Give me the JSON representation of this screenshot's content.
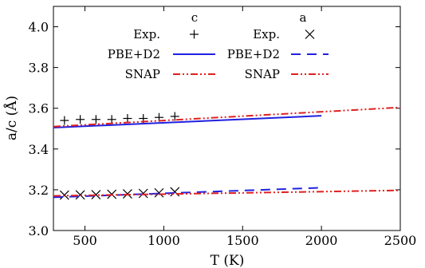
{
  "chart_data": {
    "type": "line",
    "xlabel": "T (K)",
    "ylabel": "a/c (Å)",
    "xlim": [
      300,
      2500
    ],
    "ylim": [
      3.0,
      4.1
    ],
    "xticks": [
      500,
      1000,
      1500,
      2000,
      2500
    ],
    "yticks": [
      3.0,
      3.2,
      3.4,
      3.6,
      3.8,
      4.0
    ],
    "ytick_labels": [
      "3.0",
      "3.2",
      "3.4",
      "3.6",
      "3.8",
      "4.0"
    ],
    "grid": false,
    "legend_placement": "top-center",
    "legend_columns": [
      {
        "header": "c",
        "entries": [
          {
            "label": "Exp.",
            "series": "exp_c"
          },
          {
            "label": "PBE+D2",
            "series": "pbe_c"
          },
          {
            "label": "SNAP",
            "series": "snap_c"
          }
        ]
      },
      {
        "header": "a",
        "entries": [
          {
            "label": "Exp.",
            "series": "exp_a"
          },
          {
            "label": "PBE+D2",
            "series": "pbe_a"
          },
          {
            "label": "SNAP",
            "series": "snap_a"
          }
        ]
      }
    ],
    "series": [
      {
        "id": "exp_c",
        "style": "plus-markers",
        "color": "#000000",
        "x": [
          370,
          470,
          570,
          670,
          770,
          870,
          970,
          1070
        ],
        "y": [
          3.54,
          3.545,
          3.545,
          3.545,
          3.55,
          3.55,
          3.555,
          3.56
        ]
      },
      {
        "id": "pbe_c",
        "style": "solid",
        "color": "#2020e0",
        "x": [
          300,
          2000
        ],
        "y": [
          3.505,
          3.563
        ]
      },
      {
        "id": "snap_c",
        "style": "dash-dot-dot",
        "color": "#e02020",
        "x": [
          300,
          2500
        ],
        "y": [
          3.51,
          3.604
        ]
      },
      {
        "id": "exp_a",
        "style": "x-markers",
        "color": "#000000",
        "x": [
          370,
          470,
          570,
          670,
          770,
          870,
          970,
          1070
        ],
        "y": [
          3.174,
          3.175,
          3.176,
          3.178,
          3.18,
          3.182,
          3.185,
          3.19
        ]
      },
      {
        "id": "pbe_a",
        "style": "dashed",
        "color": "#2020e0",
        "x": [
          300,
          2000
        ],
        "y": [
          3.163,
          3.21
        ]
      },
      {
        "id": "snap_a",
        "style": "dash-dot-dot",
        "color": "#e02020",
        "x": [
          300,
          2500
        ],
        "y": [
          3.17,
          3.197
        ]
      }
    ]
  }
}
